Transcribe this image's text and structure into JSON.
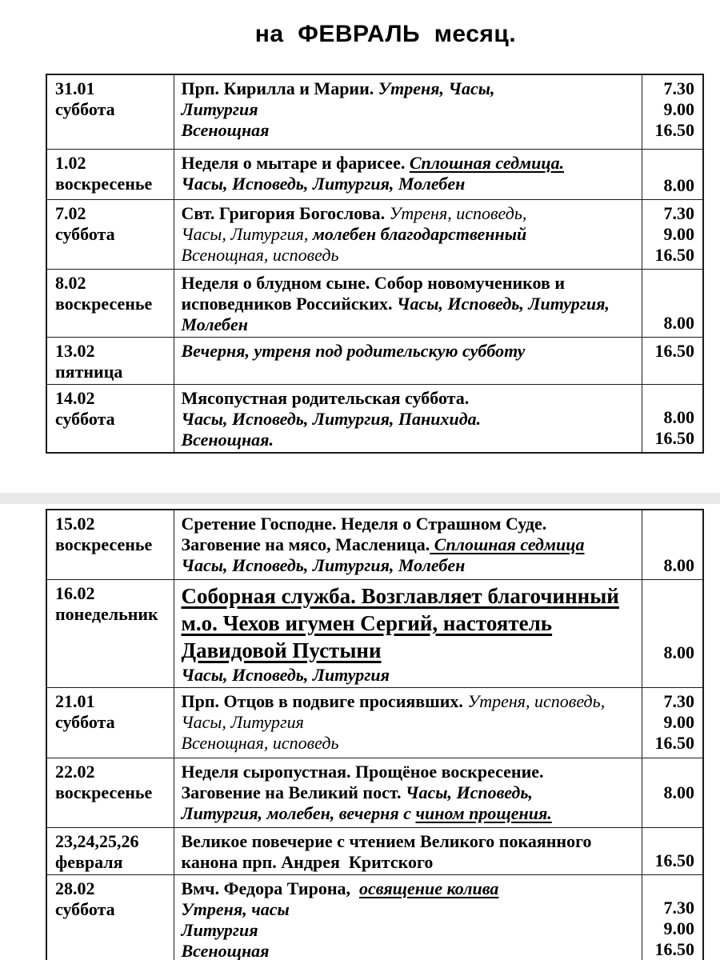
{
  "page": {
    "title": "на  ФЕВРАЛЬ  месяц."
  },
  "colors": {
    "text": "#000000",
    "border": "#1c1c1c",
    "separator_band": "#e9e9e9",
    "background": "#ffffff"
  },
  "tables": [
    {
      "name": "february-schedule-first-half",
      "rows": [
        {
          "h": 93,
          "date": [
            "31.01",
            "суббота"
          ],
          "desc": [
            [
              {
                "t": "Прп. Кирилла и Марии. ",
                "s": "b"
              },
              {
                "t": "Утреня, Часы,",
                "s": "bi"
              }
            ],
            [
              {
                "t": "Литургия",
                "s": "bi"
              }
            ],
            [
              {
                "t": "Всенощная",
                "s": "bi"
              }
            ]
          ],
          "times": {
            "align": "top",
            "lines": [
              "7.30",
              "9.00",
              "16.50"
            ]
          }
        },
        {
          "h": 63,
          "date": [
            "1.02",
            "воскресенье"
          ],
          "desc": [
            [
              {
                "t": "Неделя о мытаре и фарисее. ",
                "s": "b"
              },
              {
                "t": "Сплошная седмица.",
                "s": "biu"
              }
            ],
            [
              {
                "t": "Часы, Исповедь, Литургия, Молебен",
                "s": "bi"
              }
            ]
          ],
          "times": {
            "align": "bottom",
            "lines": [
              "8.00"
            ]
          }
        },
        {
          "h": 83,
          "date": [
            "7.02",
            "суббота"
          ],
          "desc": [
            [
              {
                "t": "Свт. Григория Богослова. ",
                "s": "b"
              },
              {
                "t": "Утреня, исповедь,",
                "s": "i"
              }
            ],
            [
              {
                "t": "Часы, Литургия, ",
                "s": "i"
              },
              {
                "t": "молебен благодарственный",
                "s": "bi"
              }
            ],
            [
              {
                "t": "Всенощная, исповедь",
                "s": "i"
              }
            ]
          ],
          "times": {
            "align": "top",
            "lines": [
              "7.30",
              "9.00",
              "16.50"
            ]
          }
        },
        {
          "h": 82,
          "date": [
            "8.02",
            "воскресенье"
          ],
          "desc": [
            [
              {
                "t": "Неделя о блудном сыне. Собор новомучеников и",
                "s": "b"
              }
            ],
            [
              {
                "t": "исповедников Российских. ",
                "s": "b"
              },
              {
                "t": "Часы, Исповедь, Литургия,",
                "s": "bi"
              }
            ],
            [
              {
                "t": "Молебен",
                "s": "bi"
              }
            ]
          ],
          "times": {
            "align": "bottom",
            "lines": [
              "8.00"
            ]
          }
        },
        {
          "h": 56,
          "date": [
            "13.02",
            "пятница"
          ],
          "desc": [
            [
              {
                "t": "Вечерня, утреня под родительскую субботу",
                "s": "bi"
              }
            ]
          ],
          "times": {
            "align": "top",
            "lines": [
              "16.50"
            ]
          }
        },
        {
          "h": 82,
          "date": [
            "14.02",
            "суббота"
          ],
          "desc": [
            [
              {
                "t": "Мясопустная родительская суббота.",
                "s": "b"
              }
            ],
            [
              {
                "t": "Часы, Исповедь, Литургия, Панихида.",
                "s": "bi"
              }
            ],
            [
              {
                "t": "Всенощная.",
                "s": "bi"
              }
            ]
          ],
          "times": {
            "align": "bottom",
            "lines": [
              "8.00",
              "16.50"
            ]
          }
        }
      ]
    },
    {
      "name": "february-schedule-second-half",
      "rows": [
        {
          "h": 87,
          "date": [
            "15.02",
            "воскресенье"
          ],
          "desc": [
            [
              {
                "t": "Сретение Господне. Неделя о Страшном Суде.",
                "s": "b"
              }
            ],
            [
              {
                "t": "Заговение на мясо, Масленица.",
                "s": "b"
              },
              {
                "t": " Сплошная седмица",
                "s": "biu"
              }
            ],
            [
              {
                "t": "Часы, Исповедь, Литургия, Молебен",
                "s": "bi"
              }
            ]
          ],
          "times": {
            "align": "bottom",
            "lines": [
              "8.00"
            ]
          }
        },
        {
          "h": 120,
          "date": [
            "16.02",
            "понедельник"
          ],
          "desc": [
            [
              {
                "t": "Соборная служба. Возглавляет благочинный",
                "s": "xl"
              }
            ],
            [
              {
                "t": "м.о. Чехов игумен Сергий, настоятель",
                "s": "xl"
              }
            ],
            [
              {
                "t": "Давидовой Пустыни",
                "s": "xl"
              }
            ],
            [
              {
                "t": "Часы, Исповедь, Литургия",
                "s": "bi"
              }
            ]
          ],
          "times": {
            "align": "bottom",
            "lines": [
              "8.00",
              ""
            ]
          }
        },
        {
          "h": 88,
          "date": [
            "21.01",
            "суббота"
          ],
          "desc": [
            [
              {
                "t": "Прп. Отцов в подвиге просиявших. ",
                "s": "b"
              },
              {
                "t": "Утреня, исповедь,",
                "s": "i"
              }
            ],
            [
              {
                "t": "Часы, Литургия",
                "s": "i"
              }
            ],
            [
              {
                "t": "Всенощная, исповедь",
                "s": "i"
              }
            ]
          ],
          "times": {
            "align": "top",
            "lines": [
              "7.30",
              "9.00",
              "16.50"
            ]
          }
        },
        {
          "h": 87,
          "date": [
            "22.02",
            "воскресенье"
          ],
          "desc": [
            [
              {
                "t": "Неделя сыропустная. Прощёное воскресение.",
                "s": "b"
              }
            ],
            [
              {
                "t": "Заговение на Великий пост. ",
                "s": "b"
              },
              {
                "t": "Часы, Исповедь,",
                "s": "bi"
              }
            ],
            [
              {
                "t": "Литургия, молебен, вечерня с ",
                "s": "bi"
              },
              {
                "t": "чином прощения.",
                "s": "biu"
              }
            ]
          ],
          "times": {
            "align": "center",
            "lines": [
              "8.00"
            ]
          }
        },
        {
          "h": 52,
          "date": [
            "23,24,25,26",
            "февраля"
          ],
          "desc": [
            [
              {
                "t": "Великое повечерие с чтением Великого покаянного",
                "s": "b"
              }
            ],
            [
              {
                "t": "канона прп. Андрея  Критского",
                "s": "b"
              }
            ]
          ],
          "times": {
            "align": "bottom",
            "lines": [
              "16.50"
            ]
          }
        },
        {
          "h": 112,
          "date": [
            "28.02",
            "суббота"
          ],
          "desc": [
            [
              {
                "t": "Вмч. Федора Тирона,  ",
                "s": "b"
              },
              {
                "t": "освящение колива",
                "s": "biu"
              }
            ],
            [
              {
                "t": "Утреня, часы",
                "s": "bi"
              }
            ],
            [
              {
                "t": "Литургия",
                "s": "bi"
              }
            ],
            [
              {
                "t": "Всенощная",
                "s": "bi"
              }
            ]
          ],
          "times": {
            "align": "bottom",
            "lines": [
              "7.30",
              "9.00",
              "16.50"
            ]
          }
        }
      ]
    }
  ]
}
